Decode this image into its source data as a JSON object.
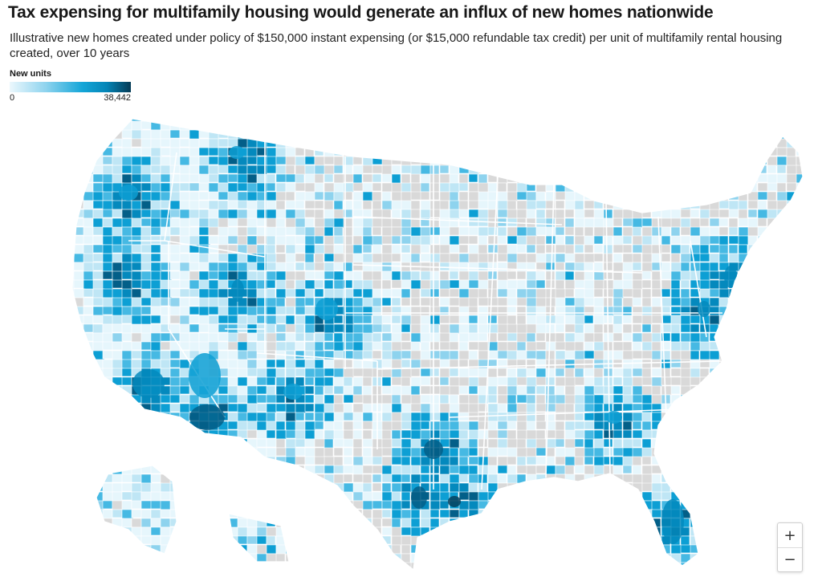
{
  "title": "Tax expensing for multifamily housing would generate an influx of new homes nationwide",
  "subtitle": "Illustrative new homes created under policy of $150,000 instant expensing (or $15,000 refundable tax credit) per unit of multifamily rental housing created, over 10 years",
  "legend": {
    "title": "New units",
    "min": "0",
    "max": "38,442"
  },
  "colors": {
    "none": "#d9d9d9",
    "c1": "#e6f6fc",
    "c2": "#bfe6f5",
    "c3": "#8ed3ee",
    "c4": "#46b9e3",
    "c5": "#0d9fd4",
    "c6": "#0489bd",
    "c7": "#035f88",
    "c8": "#063f5c"
  },
  "zoom": {
    "in_label": "+",
    "out_label": "−"
  }
}
